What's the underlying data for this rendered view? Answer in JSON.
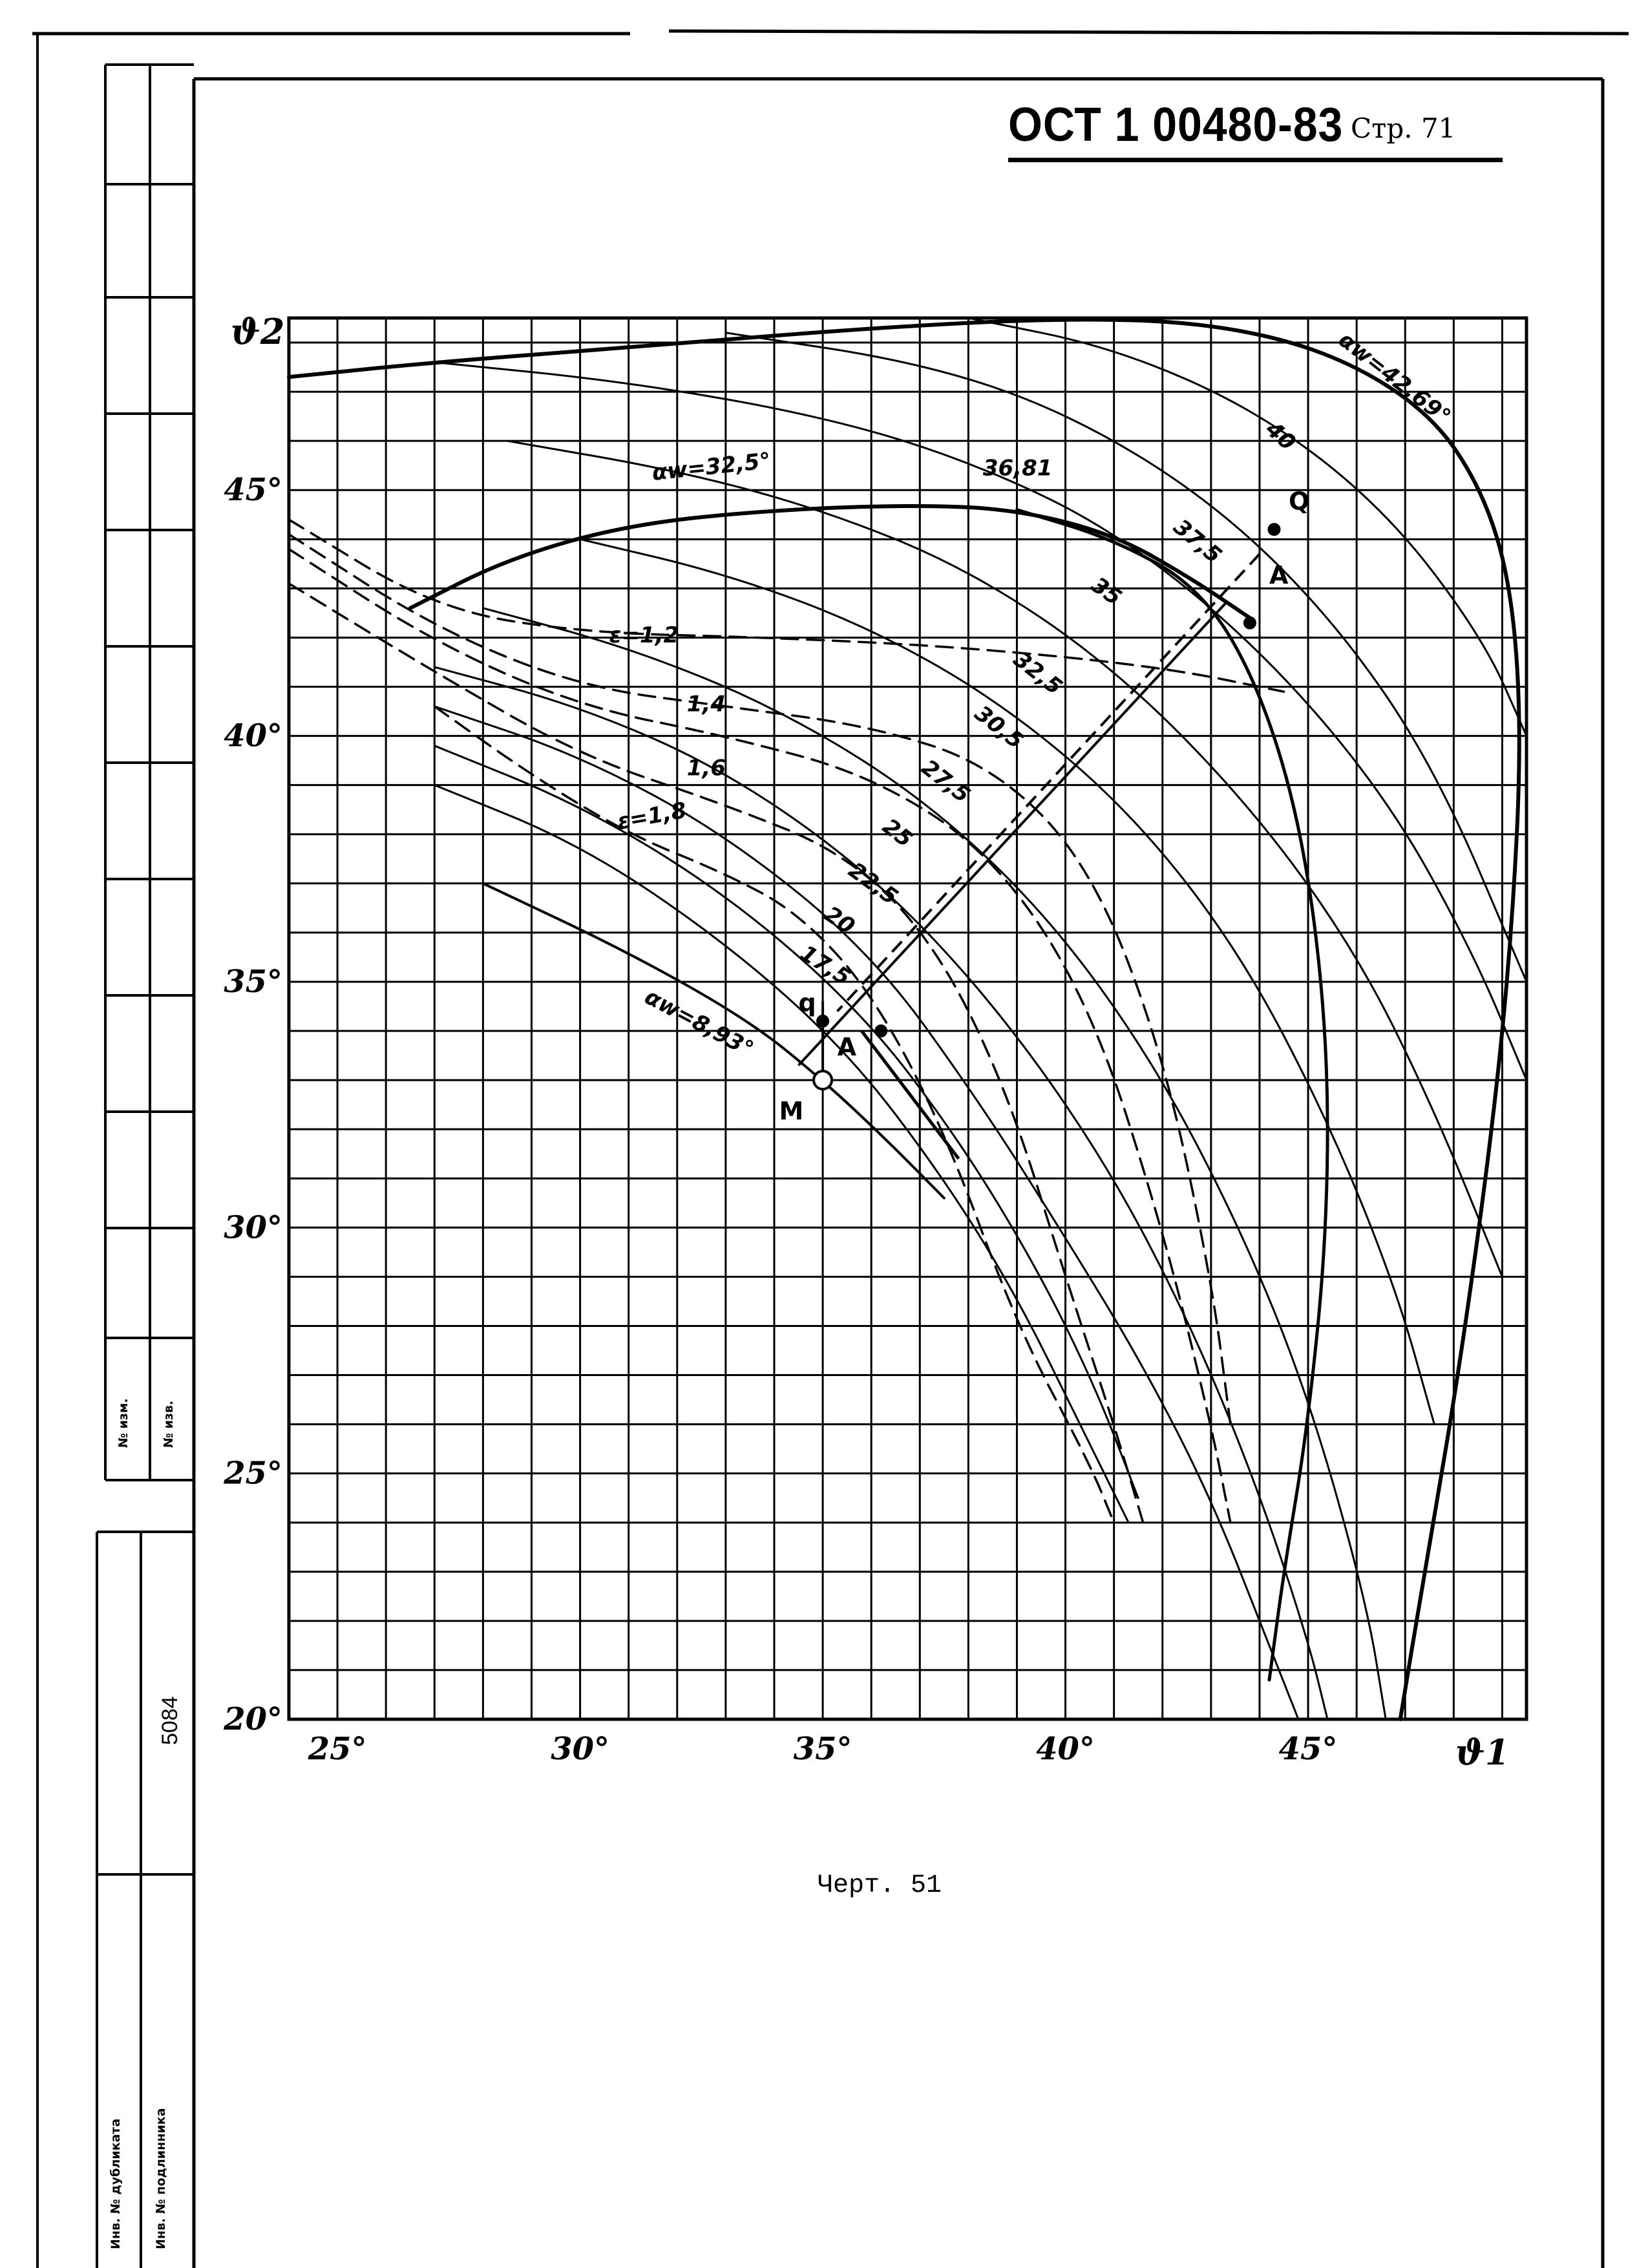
{
  "header": {
    "document_code": "ОСТ 1 00480-83",
    "page_label": "Стр. 71"
  },
  "caption": "Черт. 51",
  "stamp": {
    "rev_number": "№ изм.",
    "rev_number_2": "№ изв.",
    "inventory_number": "5084",
    "inv_duplicate": "Инв. № дубликата",
    "inv_original": "Инв. № подлинника"
  },
  "chart_data": {
    "type": "line",
    "xlabel": "ϑ1",
    "ylabel": "ϑ2",
    "xlim": [
      24,
      49.5
    ],
    "ylim": [
      20,
      48.5
    ],
    "grid": true,
    "x_ticks": [
      {
        "value": 25,
        "label": "25°"
      },
      {
        "value": 30,
        "label": "30°"
      },
      {
        "value": 35,
        "label": "35°"
      },
      {
        "value": 40,
        "label": "40°"
      },
      {
        "value": 45,
        "label": "45°"
      }
    ],
    "y_ticks": [
      {
        "value": 20,
        "label": "20°"
      },
      {
        "value": 25,
        "label": "25°"
      },
      {
        "value": 30,
        "label": "30°"
      },
      {
        "value": 35,
        "label": "35°"
      },
      {
        "value": 40,
        "label": "40°"
      },
      {
        "value": 45,
        "label": "45°"
      }
    ],
    "alpha_curves": [
      {
        "label": "αw=8,93°",
        "lx": 31.3,
        "ly": 34.6,
        "rot": 28,
        "w": 4,
        "points": [
          [
            28.0,
            37.0
          ],
          [
            31.0,
            35.6
          ],
          [
            33.5,
            34.2
          ],
          [
            35.0,
            33.0
          ],
          [
            36.3,
            31.8
          ],
          [
            37.5,
            30.6
          ]
        ]
      },
      {
        "label": "17,5",
        "lx": 34.5,
        "ly": 35.5,
        "rot": 32,
        "w": 3,
        "points": [
          [
            27.0,
            39.0
          ],
          [
            30.0,
            37.8
          ],
          [
            33.0,
            35.8
          ],
          [
            35.5,
            33.6
          ],
          [
            37.5,
            31.0
          ],
          [
            39.0,
            28.6
          ],
          [
            40.3,
            26.0
          ],
          [
            41.3,
            24.0
          ]
        ]
      },
      {
        "label": "20",
        "lx": 35.0,
        "ly": 36.3,
        "rot": 34,
        "w": 3,
        "points": [
          [
            27.0,
            39.8
          ],
          [
            30.0,
            38.6
          ],
          [
            33.0,
            36.8
          ],
          [
            35.8,
            34.4
          ],
          [
            37.8,
            31.8
          ],
          [
            39.4,
            29.2
          ],
          [
            40.6,
            26.8
          ],
          [
            41.5,
            24.5
          ]
        ]
      },
      {
        "label": "22,5",
        "lx": 35.5,
        "ly": 37.2,
        "rot": 36,
        "w": 3,
        "points": [
          [
            27.0,
            40.6
          ],
          [
            30.0,
            39.6
          ],
          [
            33.0,
            38.0
          ],
          [
            36.0,
            35.6
          ],
          [
            38.2,
            32.6
          ],
          [
            40.0,
            29.8
          ],
          [
            41.6,
            27.2
          ],
          [
            43.0,
            24.5
          ],
          [
            44.2,
            21.5
          ],
          [
            44.8,
            20.0
          ]
        ]
      },
      {
        "label": "25",
        "lx": 36.2,
        "ly": 38.1,
        "rot": 38,
        "w": 3,
        "points": [
          [
            27.0,
            41.4
          ],
          [
            30.0,
            40.6
          ],
          [
            33.0,
            39.3
          ],
          [
            36.0,
            37.2
          ],
          [
            38.5,
            34.6
          ],
          [
            40.8,
            31.4
          ],
          [
            42.6,
            28.0
          ],
          [
            44.0,
            24.6
          ],
          [
            45.0,
            21.6
          ],
          [
            45.4,
            20.0
          ]
        ]
      },
      {
        "label": "27,5",
        "lx": 37.0,
        "ly": 39.3,
        "rot": 38,
        "w": 3,
        "points": [
          [
            28.0,
            42.6
          ],
          [
            31.0,
            41.8
          ],
          [
            34.0,
            40.6
          ],
          [
            37.0,
            38.8
          ],
          [
            39.6,
            36.4
          ],
          [
            41.8,
            33.4
          ],
          [
            43.6,
            30.0
          ],
          [
            45.0,
            26.6
          ],
          [
            46.2,
            22.4
          ],
          [
            46.6,
            20.0
          ]
        ]
      },
      {
        "label": "30,5",
        "lx": 38.1,
        "ly": 40.4,
        "rot": 38,
        "w": 3,
        "points": [
          [
            30.0,
            44.0
          ],
          [
            33.0,
            43.3
          ],
          [
            36.0,
            42.2
          ],
          [
            38.8,
            40.6
          ],
          [
            41.4,
            38.4
          ],
          [
            43.6,
            35.6
          ],
          [
            45.4,
            32.2
          ],
          [
            46.8,
            28.8
          ],
          [
            47.6,
            26.0
          ]
        ]
      },
      {
        "label": "32,5",
        "lx": 38.9,
        "ly": 41.5,
        "rot": 38,
        "w": 3,
        "points": [
          [
            28.5,
            46.0
          ],
          [
            32.0,
            45.4
          ],
          [
            35.0,
            44.6
          ],
          [
            38.0,
            43.4
          ],
          [
            41.0,
            41.4
          ],
          [
            43.8,
            38.6
          ],
          [
            46.0,
            35.6
          ],
          [
            47.6,
            32.4
          ],
          [
            49.0,
            29.0
          ]
        ]
      },
      {
        "label": "35",
        "lx": 40.5,
        "ly": 43.0,
        "rot": 35,
        "w": 3,
        "points": [
          [
            27.0,
            47.6
          ],
          [
            31.0,
            47.2
          ],
          [
            35.0,
            46.5
          ],
          [
            38.0,
            45.6
          ],
          [
            41.0,
            44.2
          ],
          [
            44.0,
            41.8
          ],
          [
            46.6,
            38.8
          ],
          [
            48.4,
            35.6
          ],
          [
            49.5,
            33.0
          ]
        ]
      },
      {
        "label": "37,5",
        "lx": 42.2,
        "ly": 44.2,
        "rot": 40,
        "w": 3,
        "points": [
          [
            33.0,
            48.2
          ],
          [
            37.0,
            47.6
          ],
          [
            40.0,
            46.6
          ],
          [
            43.0,
            44.8
          ],
          [
            45.5,
            42.4
          ],
          [
            47.6,
            39.4
          ],
          [
            49.5,
            35.0
          ]
        ]
      },
      {
        "label": "40",
        "lx": 44.1,
        "ly": 46.2,
        "rot": 42,
        "w": 3,
        "points": [
          [
            38.0,
            48.5
          ],
          [
            41.0,
            47.9
          ],
          [
            44.0,
            46.6
          ],
          [
            46.6,
            44.6
          ],
          [
            48.6,
            42.0
          ],
          [
            49.5,
            40.0
          ]
        ]
      },
      {
        "label": "αw=32,5°",
        "lx": 31.5,
        "ly": 45.2,
        "rot": -6,
        "w": 6,
        "points": [
          [
            26.5,
            42.6
          ],
          [
            28.5,
            43.6
          ],
          [
            31.0,
            44.3
          ],
          [
            34.0,
            44.6
          ],
          [
            37.0,
            44.7
          ],
          [
            39.0,
            44.6
          ],
          [
            41.0,
            44.1
          ],
          [
            42.6,
            43.2
          ],
          [
            43.8,
            42.4
          ]
        ]
      },
      {
        "label": "36,81",
        "lx": 38.3,
        "ly": 45.3,
        "rot": 0,
        "w": 5,
        "points": [
          [
            39.0,
            44.6
          ],
          [
            41.0,
            44.0
          ],
          [
            42.8,
            43.0
          ],
          [
            44.0,
            41.0
          ],
          [
            44.9,
            38.0
          ],
          [
            45.4,
            34.0
          ],
          [
            45.4,
            30.0
          ],
          [
            45.0,
            26.0
          ],
          [
            44.5,
            23.0
          ],
          [
            44.2,
            20.8
          ]
        ]
      },
      {
        "label": "αw=42,69°",
        "lx": 45.6,
        "ly": 48.0,
        "rot": 38,
        "w": 6,
        "points": [
          [
            24.0,
            47.3
          ],
          [
            27.0,
            47.6
          ],
          [
            31.0,
            47.9
          ],
          [
            36.0,
            48.3
          ],
          [
            40.0,
            48.5
          ],
          [
            43.0,
            48.4
          ],
          [
            45.5,
            47.8
          ],
          [
            47.5,
            46.6
          ],
          [
            48.6,
            45.0
          ],
          [
            49.2,
            43.0
          ],
          [
            49.4,
            40.0
          ],
          [
            49.2,
            36.0
          ],
          [
            48.8,
            32.0
          ],
          [
            48.1,
            27.0
          ],
          [
            47.4,
            23.0
          ],
          [
            46.9,
            20.0
          ]
        ]
      }
    ],
    "epsilon_curves": [
      {
        "label": "ε=1,2",
        "lx": 30.6,
        "ly": 41.9,
        "rot": 0,
        "points": [
          [
            24.0,
            44.4
          ],
          [
            27.0,
            42.6
          ],
          [
            30.0,
            42.1
          ],
          [
            34.0,
            42.0
          ],
          [
            38.0,
            41.8
          ],
          [
            42.0,
            41.4
          ],
          [
            44.5,
            40.9
          ]
        ]
      },
      {
        "label": "1,4",
        "lx": 32.2,
        "ly": 40.5,
        "rot": 0,
        "points": [
          [
            24.0,
            43.8
          ],
          [
            27.0,
            41.9
          ],
          [
            30.0,
            40.6
          ],
          [
            33.0,
            40.0
          ],
          [
            36.0,
            39.2
          ],
          [
            38.5,
            37.6
          ],
          [
            40.5,
            34.6
          ],
          [
            42.0,
            30.0
          ],
          [
            43.0,
            26.0
          ],
          [
            43.4,
            24.0
          ]
        ]
      },
      {
        "label": "1,6",
        "lx": 32.2,
        "ly": 39.2,
        "rot": 0,
        "points": [
          [
            24.0,
            43.1
          ],
          [
            27.0,
            41.3
          ],
          [
            30.0,
            39.6
          ],
          [
            33.0,
            38.6
          ],
          [
            35.5,
            37.6
          ],
          [
            37.3,
            35.8
          ],
          [
            38.8,
            32.8
          ],
          [
            40.0,
            29.0
          ],
          [
            41.0,
            26.0
          ],
          [
            41.6,
            24.0
          ]
        ]
      },
      {
        "label": "ε=1,8",
        "lx": 30.8,
        "ly": 38.1,
        "rot": -10,
        "points": [
          [
            27.0,
            40.6
          ],
          [
            29.0,
            39.2
          ],
          [
            31.0,
            38.0
          ],
          [
            33.0,
            37.2
          ],
          [
            34.5,
            36.4
          ],
          [
            36.0,
            34.8
          ],
          [
            37.5,
            32.0
          ],
          [
            39.0,
            28.0
          ],
          [
            40.5,
            25.2
          ],
          [
            41.0,
            24.0
          ]
        ]
      },
      {
        "label": "",
        "lx": 0,
        "ly": 0,
        "rot": 0,
        "points": [
          [
            24.0,
            44.1
          ],
          [
            27.0,
            42.2
          ],
          [
            30.0,
            41.0
          ],
          [
            33.0,
            40.6
          ],
          [
            36.0,
            40.2
          ],
          [
            38.5,
            39.4
          ],
          [
            40.5,
            37.4
          ],
          [
            42.0,
            33.6
          ],
          [
            43.0,
            29.0
          ],
          [
            43.4,
            26.0
          ]
        ]
      }
    ],
    "construction_lines": [
      {
        "points": [
          [
            44.0,
            43.7
          ],
          [
            35.3,
            34.4
          ]
        ],
        "dash": true,
        "w": 4
      },
      {
        "points": [
          [
            43.3,
            42.7
          ],
          [
            34.5,
            33.3
          ]
        ],
        "dash": false,
        "w": 4
      },
      {
        "points": [
          [
            35.0,
            34.6
          ],
          [
            35.0,
            33.0
          ]
        ],
        "dash": false,
        "w": 4
      },
      {
        "points": [
          [
            35.8,
            34.0
          ],
          [
            37.8,
            31.4
          ]
        ],
        "dash": false,
        "w": 5
      }
    ],
    "points": [
      {
        "label": "Q",
        "x": 44.3,
        "y": 44.2,
        "lx": 44.6,
        "ly": 44.6
      },
      {
        "label": "A",
        "x": 43.8,
        "y": 42.3,
        "lx": 44.2,
        "ly": 43.1
      },
      {
        "label": "q",
        "x": 35.0,
        "y": 34.2,
        "lx": 34.5,
        "ly": 34.4
      },
      {
        "label": "A",
        "x": 36.2,
        "y": 34.0,
        "lx": 35.3,
        "ly": 33.5
      },
      {
        "label": "M",
        "x": 35.0,
        "y": 33.0,
        "lx": 34.1,
        "ly": 32.2
      }
    ]
  }
}
